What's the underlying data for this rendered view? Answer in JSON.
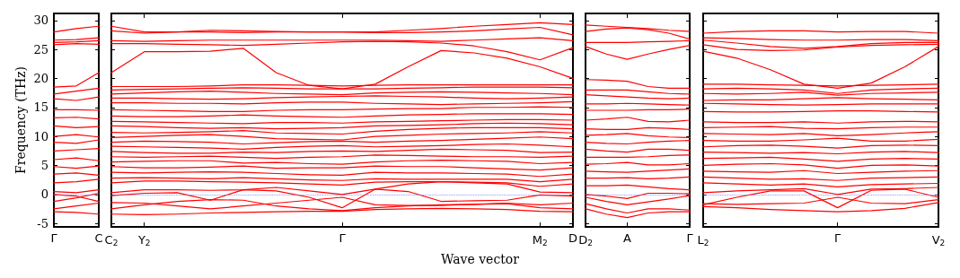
{
  "chart_data": [
    {
      "type": "line",
      "ylabel": "Frequency (THz)",
      "color": "#ff0000",
      "marker": "none",
      "categories": [
        "Γ",
        null,
        "C"
      ],
      "ylim": [
        -5.6,
        31.2
      ],
      "yticks": [
        -5,
        0,
        5,
        10,
        15,
        20,
        25,
        30
      ],
      "ref_lines": [
        {
          "axis": "y",
          "value": 0,
          "color": "#7777ff",
          "line_style": "dotted"
        }
      ],
      "series": [
        {
          "values": [
            28,
            28.6,
            29
          ]
        },
        {
          "values": [
            26.6,
            26.7,
            27
          ]
        },
        {
          "values": [
            26.2,
            26.3,
            26.5
          ]
        },
        {
          "values": [
            25.8,
            26,
            25.9
          ]
        },
        {
          "values": [
            18.5,
            18.7,
            21
          ]
        },
        {
          "values": [
            17.3,
            17.8,
            18.3
          ]
        },
        {
          "values": [
            16.5,
            16.2,
            16.8
          ]
        },
        {
          "values": [
            14.6,
            14.6,
            14.5
          ]
        },
        {
          "values": [
            13.2,
            13.3,
            13
          ]
        },
        {
          "values": [
            11.8,
            11.5,
            11.7
          ]
        },
        {
          "values": [
            10,
            10.3,
            9.9
          ]
        },
        {
          "values": [
            9,
            8.8,
            9.4
          ]
        },
        {
          "values": [
            7.5,
            7.7,
            7.9
          ]
        },
        {
          "values": [
            6,
            6.3,
            5.8
          ]
        },
        {
          "values": [
            4.8,
            4.5,
            4.9
          ]
        },
        {
          "values": [
            3.5,
            3.7,
            3.3
          ]
        },
        {
          "values": [
            2,
            2.2,
            2.6
          ]
        },
        {
          "values": [
            0.5,
            0.3,
            0.8
          ]
        },
        {
          "values": [
            0,
            -0.3,
            -1.2
          ]
        },
        {
          "values": [
            -1.2,
            -0.6,
            0.2
          ]
        },
        {
          "values": [
            -2.5,
            -2.0,
            -1.5
          ]
        },
        {
          "values": [
            -3.0,
            -3.1,
            -3.4
          ]
        }
      ]
    },
    {
      "type": "line",
      "xlabel": "Wave vector",
      "color": "#ff0000",
      "marker": "none",
      "categories": [
        "C$_{2}$",
        "Y$_{2}$",
        null,
        null,
        null,
        null,
        null,
        "Γ",
        null,
        null,
        null,
        null,
        null,
        "M$_{2}$",
        "D"
      ],
      "ylim": [
        -5.6,
        31.2
      ],
      "yticks": [
        -5,
        0,
        5,
        10,
        15,
        20,
        25,
        30
      ],
      "tick_labels": "x",
      "ref_lines": [
        {
          "axis": "y",
          "value": 0,
          "color": "#7777ff",
          "line_style": "dotted"
        }
      ],
      "series": [
        {
          "values": [
            29,
            28,
            28,
            28,
            27.9,
            28,
            28,
            28,
            28,
            28.3,
            28.6,
            29,
            29.3,
            29.6,
            29.3
          ]
        },
        {
          "values": [
            28.2,
            27.8,
            28,
            28.3,
            28.2,
            28.1,
            28,
            28,
            27.9,
            27.9,
            28,
            28.2,
            28.5,
            28.8,
            27.5
          ]
        },
        {
          "values": [
            26.5,
            26.4,
            26.5,
            26.6,
            26.6,
            26.6,
            26.6,
            26.6,
            26.6,
            26.5,
            26.4,
            26.6,
            26.8,
            27,
            26.5
          ]
        },
        {
          "values": [
            26,
            26,
            25.9,
            25.8,
            25.7,
            25.9,
            26.1,
            26.3,
            26.4,
            26.3,
            26.1,
            25.6,
            24.6,
            23.2,
            25.3
          ]
        },
        {
          "values": [
            21,
            24.6,
            24.6,
            24.7,
            25.2,
            21,
            18.8,
            18.2,
            19,
            22,
            24.8,
            24.4,
            23.5,
            22,
            20
          ]
        },
        {
          "values": [
            18.6,
            18.6,
            18.6,
            18.7,
            18.9,
            18.9,
            18.8,
            18.7,
            18.8,
            18.9,
            18.9,
            18.9,
            18.9,
            18.9,
            18.9
          ]
        },
        {
          "values": [
            18,
            18.1,
            18.2,
            18.3,
            18.4,
            18.3,
            18.2,
            18.2,
            18.2,
            18.3,
            18.4,
            18.5,
            18.5,
            18.5,
            18.4
          ]
        },
        {
          "values": [
            17.3,
            17.5,
            17.7,
            17.8,
            17.6,
            17.4,
            17.3,
            17.2,
            17.5,
            17.6,
            17.7,
            17.6,
            17.5,
            17.4,
            17.2
          ]
        },
        {
          "values": [
            16.6,
            16.6,
            16.5,
            16.4,
            16.5,
            16.7,
            16.8,
            16.9,
            17,
            16.9,
            16.8,
            16.6,
            16.5,
            16.6,
            16.8
          ]
        },
        {
          "values": [
            15.8,
            15.8,
            15.7,
            15.7,
            15.6,
            15.8,
            15.9,
            15.9,
            15.7,
            15.6,
            15.5,
            15.6,
            15.7,
            15.8,
            16
          ]
        },
        {
          "values": [
            14.6,
            14.5,
            14.4,
            14.3,
            14.3,
            14.5,
            14.6,
            14.6,
            14.7,
            14.8,
            14.8,
            15,
            15,
            15.1,
            15
          ]
        },
        {
          "values": [
            13.5,
            13.4,
            13.4,
            13.5,
            13.7,
            13.5,
            13.4,
            13.3,
            13.5,
            13.7,
            13.8,
            13.9,
            13.9,
            13.9,
            13.8
          ]
        },
        {
          "values": [
            12.6,
            12.5,
            12.4,
            12.3,
            12.2,
            12.4,
            12.4,
            12.3,
            12.5,
            12.6,
            12.7,
            12.8,
            12.9,
            12.9,
            12.8
          ]
        },
        {
          "values": [
            11.8,
            11.7,
            11.5,
            11.4,
            11.5,
            11.3,
            11.4,
            11.5,
            11.8,
            11.9,
            12,
            12.2,
            12.3,
            12.2,
            12
          ]
        },
        {
          "values": [
            10.7,
            10.6,
            10.7,
            10.8,
            11,
            10.6,
            10.5,
            10.4,
            10.9,
            11.2,
            11.4,
            11.5,
            11.5,
            11.5,
            11.3
          ]
        },
        {
          "values": [
            9.8,
            10,
            10.2,
            10.3,
            10,
            9.6,
            9.5,
            9.4,
            10,
            10.2,
            10.4,
            10.5,
            10.6,
            10.8,
            10.6
          ]
        },
        {
          "values": [
            9,
            9.2,
            9.1,
            9,
            8.7,
            8.9,
            9.1,
            9.2,
            9,
            9.2,
            9.3,
            9.5,
            9.7,
            9.9,
            9.6
          ]
        },
        {
          "values": [
            8.3,
            8.2,
            8.1,
            8,
            7.8,
            8.1,
            8.3,
            8.4,
            8.2,
            8.3,
            8.4,
            8.6,
            8.7,
            8.5,
            8.2
          ]
        },
        {
          "values": [
            7.4,
            7.2,
            7.1,
            7.1,
            7.3,
            7.2,
            7.4,
            7.5,
            7.4,
            7.6,
            7.8,
            7.7,
            7.6,
            7.2,
            7.3
          ]
        },
        {
          "values": [
            6.5,
            6.4,
            6.5,
            6.6,
            6.4,
            6.2,
            6.4,
            6.5,
            6.8,
            6.7,
            6.6,
            6.5,
            6.5,
            6.4,
            6.6
          ]
        },
        {
          "values": [
            5.6,
            5.7,
            5.8,
            5.8,
            5.4,
            5.5,
            5.3,
            5.2,
            5.6,
            5.8,
            5.9,
            5.8,
            5.7,
            5.3,
            5.5
          ]
        },
        {
          "values": [
            4.8,
            4.6,
            4.6,
            4.7,
            4.9,
            4.5,
            4.6,
            4.6,
            4.9,
            4.8,
            4.8,
            4.6,
            4.4,
            4.2,
            4.6
          ]
        },
        {
          "values": [
            3.8,
            3.7,
            3.8,
            3.9,
            3.8,
            3.6,
            3.4,
            3.3,
            3.8,
            3.7,
            3.7,
            3.6,
            3.5,
            3.1,
            3.5
          ]
        },
        {
          "values": [
            2.8,
            2.9,
            2.8,
            2.7,
            2.9,
            2.7,
            2.5,
            2.4,
            2.7,
            2.6,
            2.6,
            2.6,
            2.6,
            2.2,
            2.6
          ]
        },
        {
          "values": [
            2,
            2.3,
            2.3,
            2.2,
            2.1,
            2,
            1.8,
            1.6,
            2.1,
            2.2,
            2.2,
            2.1,
            2,
            1.4,
            1.8
          ]
        },
        {
          "values": [
            0.3,
            0.8,
            0.8,
            0.7,
            0.8,
            1.2,
            0.6,
            0,
            0.9,
            1.8,
            2.2,
            2,
            1.8,
            0.4,
            0.3
          ]
        },
        {
          "values": [
            -0.2,
            0.2,
            0.3,
            -1.0,
            0.8,
            0.6,
            -0.5,
            -2.3,
            0.9,
            0.5,
            -1.2,
            -1.1,
            -1.0,
            -0.1,
            -0.3
          ]
        },
        {
          "values": [
            -1.4,
            -1.5,
            -2,
            -2.5,
            -2.0,
            -1.5,
            -1,
            -0.5,
            -1.8,
            -1.9,
            -1.9,
            -1.7,
            -1.5,
            -1.8,
            -1.5
          ]
        },
        {
          "values": [
            -2.5,
            -1.8,
            -1.2,
            -0.9,
            -1.0,
            -2.0,
            -2.5,
            -2.8,
            -2.3,
            -2,
            -1.8,
            -1.7,
            -1.6,
            -2.3,
            -2.5
          ]
        },
        {
          "values": [
            -3.4,
            -3.5,
            -3.4,
            -3.2,
            -3.1,
            -3.0,
            -2.9,
            -2.9,
            -2.6,
            -2.5,
            -2.4,
            -2.5,
            -2.6,
            -2.9,
            -3.0
          ]
        }
      ]
    },
    {
      "type": "line",
      "color": "#ff0000",
      "marker": "none",
      "categories": [
        "D$_{2}$",
        null,
        "A",
        null,
        null,
        "Γ"
      ],
      "ylim": [
        -5.6,
        31.2
      ],
      "yticks": [
        -5,
        0,
        5,
        10,
        15,
        20,
        25,
        30
      ],
      "tick_labels": "x",
      "ref_lines": [
        {
          "axis": "y",
          "value": 0,
          "color": "#7777ff",
          "line_style": "dotted"
        }
      ],
      "series": [
        {
          "values": [
            29.2,
            29,
            28.8,
            28.6,
            28.3,
            28.1
          ]
        },
        {
          "values": [
            28.1,
            28.5,
            28.7,
            28.4,
            27.8,
            26.8
          ]
        },
        {
          "values": [
            26.2,
            26.2,
            26.2,
            26.3,
            26.4,
            26.5
          ]
        },
        {
          "values": [
            25.5,
            24.2,
            23.3,
            24.2,
            25,
            25.7
          ]
        },
        {
          "values": [
            19.8,
            19.7,
            19.5,
            18.6,
            18.3,
            18.3
          ]
        },
        {
          "values": [
            18,
            18,
            18,
            17.7,
            17.4,
            17.3
          ]
        },
        {
          "values": [
            17.2,
            17,
            16.8,
            16.6,
            16.5,
            16.6
          ]
        },
        {
          "values": [
            15.6,
            15.6,
            15.7,
            15.6,
            15.5,
            15.4
          ]
        },
        {
          "values": [
            14.5,
            14.5,
            14.5,
            14.6,
            14.6,
            14.7
          ]
        },
        {
          "values": [
            12.8,
            13,
            13.3,
            12.6,
            12.5,
            12.8
          ]
        },
        {
          "values": [
            11.3,
            11.2,
            11.2,
            11.5,
            11.4,
            11.2
          ]
        },
        {
          "values": [
            10.2,
            10.3,
            10.5,
            10.1,
            9.9,
            9.8
          ]
        },
        {
          "values": [
            9,
            8.8,
            8.7,
            9,
            9.2,
            9.3
          ]
        },
        {
          "values": [
            7.8,
            7.5,
            7.3,
            7.8,
            7.8,
            7.6
          ]
        },
        {
          "values": [
            6.4,
            6.4,
            6.4,
            6.5,
            6.7,
            6.8
          ]
        },
        {
          "values": [
            5.2,
            5.3,
            5.5,
            5.1,
            5.1,
            5.3
          ]
        },
        {
          "values": [
            4,
            3.9,
            3.8,
            4,
            4.2,
            4.4
          ]
        },
        {
          "values": [
            2.8,
            2.8,
            2.9,
            2.7,
            2.8,
            3.0
          ]
        },
        {
          "values": [
            1.5,
            1.5,
            1.6,
            1.3,
            1,
            0.8
          ]
        },
        {
          "values": [
            0,
            -0.3,
            -0.7,
            0.2,
            0.2,
            0.1
          ]
        },
        {
          "values": [
            -0.5,
            -1.2,
            -1.8,
            -1.3,
            -0.8,
            -0.2
          ]
        },
        {
          "values": [
            -1.6,
            -2.5,
            -3.2,
            -2.5,
            -2.5,
            -2.7
          ]
        },
        {
          "values": [
            -2.5,
            -3.4,
            -4.0,
            -3.2,
            -3.0,
            -3.0
          ]
        }
      ]
    },
    {
      "type": "line",
      "color": "#ff0000",
      "marker": "none",
      "categories": [
        "L$_{2}$",
        null,
        null,
        null,
        "Γ",
        null,
        null,
        "V$_{2}$"
      ],
      "ylim": [
        -5.6,
        31.2
      ],
      "yticks": [
        -5,
        0,
        5,
        10,
        15,
        20,
        25,
        30
      ],
      "tick_labels": "x",
      "ref_lines": [
        {
          "axis": "y",
          "value": 0,
          "color": "#7777ff",
          "line_style": "dotted"
        }
      ],
      "series": [
        {
          "values": [
            27.8,
            28.1,
            28.2,
            28.2,
            28,
            28.1,
            28.1,
            27.8
          ]
        },
        {
          "values": [
            27,
            26.9,
            26.7,
            26.6,
            26.6,
            26.7,
            26.7,
            26.5
          ]
        },
        {
          "values": [
            26.6,
            26.1,
            25.5,
            25.2,
            25.5,
            26,
            26.2,
            26.2
          ]
        },
        {
          "values": [
            25.8,
            25,
            24.8,
            24.9,
            25.4,
            25.7,
            25.8,
            25.9
          ]
        },
        {
          "values": [
            24.7,
            23.5,
            21.5,
            19,
            18.3,
            19.2,
            22,
            25.5
          ]
        },
        {
          "values": [
            19,
            19,
            18.9,
            18.8,
            18.7,
            18.8,
            18.9,
            19
          ]
        },
        {
          "values": [
            18.2,
            18.3,
            18.2,
            18,
            17.4,
            18,
            18.2,
            18.3
          ]
        },
        {
          "values": [
            17.4,
            17.3,
            17.4,
            17.6,
            17.1,
            17.4,
            17.5,
            17.6
          ]
        },
        {
          "values": [
            16.2,
            16.3,
            16.3,
            16.5,
            16.7,
            16.5,
            16.4,
            16.3
          ]
        },
        {
          "values": [
            15.7,
            15.6,
            15.5,
            15.4,
            15.5,
            15.6,
            15.6,
            15.6
          ]
        },
        {
          "values": [
            14.3,
            14.2,
            14.2,
            14.3,
            14.4,
            14.4,
            14.3,
            14.2
          ]
        },
        {
          "values": [
            12.5,
            12.4,
            12.4,
            12.5,
            12.3,
            12.5,
            12.6,
            12.5
          ]
        },
        {
          "values": [
            11.5,
            11.6,
            11.7,
            11.4,
            11.3,
            11.5,
            11.6,
            11.6
          ]
        },
        {
          "values": [
            10.5,
            10.4,
            10.3,
            10.5,
            10.1,
            10.3,
            10.6,
            10.8
          ]
        },
        {
          "values": [
            9.3,
            9.2,
            9.2,
            9.4,
            9.7,
            9.2,
            9.2,
            9.5
          ]
        },
        {
          "values": [
            8.2,
            8.4,
            8.5,
            8.3,
            8.0,
            8.4,
            8.5,
            8.4
          ]
        },
        {
          "values": [
            7.3,
            7.2,
            7.1,
            7.2,
            7.0,
            7.3,
            7.4,
            7.2
          ]
        },
        {
          "values": [
            6.2,
            6.3,
            6.4,
            6.1,
            5.7,
            6.1,
            6.2,
            6.1
          ]
        },
        {
          "values": [
            5.0,
            5.2,
            5.3,
            5.1,
            4.5,
            5.0,
            5.1,
            4.9
          ]
        },
        {
          "values": [
            4.0,
            3.9,
            3.8,
            4.1,
            3.6,
            3.8,
            4,
            4.1
          ]
        },
        {
          "values": [
            3.0,
            2.8,
            2.6,
            2.7,
            2.4,
            2.8,
            2.9,
            3.0
          ]
        },
        {
          "values": [
            2.0,
            1.8,
            1.6,
            1.8,
            1.3,
            1.7,
            1.8,
            1.9
          ]
        },
        {
          "values": [
            0.3,
            0.6,
            0.8,
            1.0,
            0,
            0.9,
            1.0,
            1.2
          ]
        },
        {
          "values": [
            -1.8,
            -0.5,
            0.6,
            0.6,
            -2.3,
            0.7,
            0.9,
            -0.5
          ]
        },
        {
          "values": [
            -1.6,
            -1.7,
            -1.6,
            -1.5,
            -0.5,
            -1.5,
            -1.6,
            -0.9
          ]
        },
        {
          "values": [
            -2.1,
            -2.3,
            -2.6,
            -2.8,
            -3.0,
            -2.8,
            -2.4,
            -1.4
          ]
        }
      ]
    }
  ]
}
